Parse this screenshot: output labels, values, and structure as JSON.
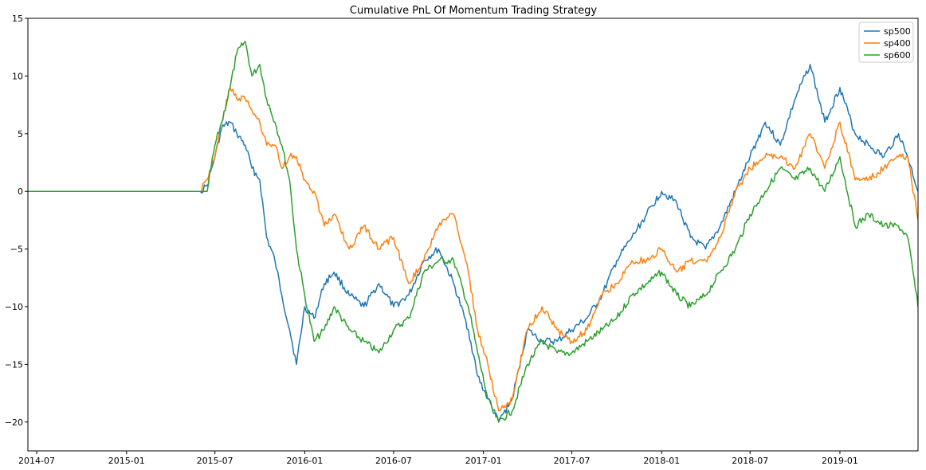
{
  "chart_data": {
    "type": "line",
    "title": "Cumulative PnL Of Momentum Trading Strategy",
    "xlabel": "",
    "ylabel": "",
    "xlim": [
      "2014-06-13",
      "2019-06-10"
    ],
    "ylim": [
      -22.5,
      15
    ],
    "x_ticks": [
      "2014-07",
      "2015-01",
      "2015-07",
      "2016-01",
      "2016-07",
      "2017-01",
      "2017-07",
      "2018-01",
      "2018-07",
      "2019-01"
    ],
    "y_ticks": [
      -20,
      -15,
      -10,
      -5,
      0,
      5,
      10,
      15
    ],
    "grid": false,
    "legend_position": "top-right",
    "series": [
      {
        "name": "sp500",
        "color": "#1f77b4",
        "x": [
          "2014-06-13",
          "2015-06-01",
          "2015-06-15",
          "2015-07-01",
          "2015-07-15",
          "2015-08-01",
          "2015-08-15",
          "2015-09-01",
          "2015-09-15",
          "2015-10-01",
          "2015-10-15",
          "2015-11-01",
          "2015-11-15",
          "2015-12-01",
          "2015-12-15",
          "2016-01-01",
          "2016-01-20",
          "2016-02-10",
          "2016-03-01",
          "2016-04-01",
          "2016-05-01",
          "2016-06-01",
          "2016-07-01",
          "2016-08-01",
          "2016-09-01",
          "2016-10-01",
          "2016-11-01",
          "2016-12-01",
          "2016-12-20",
          "2017-01-10",
          "2017-02-01",
          "2017-03-01",
          "2017-04-01",
          "2017-05-01",
          "2017-06-01",
          "2017-07-01",
          "2017-08-01",
          "2017-09-01",
          "2017-10-01",
          "2017-11-01",
          "2017-12-01",
          "2018-01-01",
          "2018-02-01",
          "2018-03-01",
          "2018-04-01",
          "2018-05-01",
          "2018-06-01",
          "2018-07-01",
          "2018-08-01",
          "2018-09-01",
          "2018-10-01",
          "2018-11-01",
          "2018-12-01",
          "2019-01-01",
          "2019-02-01",
          "2019-03-01",
          "2019-04-01",
          "2019-05-01",
          "2019-05-20",
          "2019-06-10"
        ],
        "values": [
          0,
          0,
          0.5,
          3,
          5.5,
          6,
          5,
          4,
          2,
          1,
          -4,
          -6,
          -9,
          -12,
          -15,
          -10,
          -11,
          -8,
          -7,
          -9,
          -10,
          -8,
          -10,
          -9,
          -6,
          -5,
          -8,
          -12,
          -16,
          -18,
          -20,
          -18,
          -12,
          -13,
          -13,
          -12,
          -11,
          -9,
          -6,
          -4,
          -2,
          0,
          -1,
          -4,
          -5,
          -3,
          0,
          3,
          6,
          4,
          8,
          11,
          6,
          9,
          5,
          4,
          3,
          5,
          3,
          0
        ]
      },
      {
        "name": "sp400",
        "color": "#ff7f0e",
        "x": [
          "2014-06-13",
          "2015-06-01",
          "2015-06-15",
          "2015-07-01",
          "2015-07-15",
          "2015-08-01",
          "2015-08-15",
          "2015-09-01",
          "2015-09-15",
          "2015-10-01",
          "2015-10-15",
          "2015-11-01",
          "2015-11-15",
          "2015-12-01",
          "2015-12-15",
          "2016-01-01",
          "2016-01-20",
          "2016-02-10",
          "2016-03-01",
          "2016-04-01",
          "2016-05-01",
          "2016-06-01",
          "2016-07-01",
          "2016-08-01",
          "2016-09-01",
          "2016-10-01",
          "2016-11-01",
          "2016-12-01",
          "2016-12-20",
          "2017-01-10",
          "2017-02-01",
          "2017-03-01",
          "2017-04-01",
          "2017-05-01",
          "2017-06-01",
          "2017-07-01",
          "2017-08-01",
          "2017-09-01",
          "2017-10-01",
          "2017-11-01",
          "2017-12-01",
          "2018-01-01",
          "2018-02-01",
          "2018-03-01",
          "2018-04-01",
          "2018-05-01",
          "2018-06-01",
          "2018-07-01",
          "2018-08-01",
          "2018-09-01",
          "2018-10-01",
          "2018-11-01",
          "2018-12-01",
          "2019-01-01",
          "2019-02-01",
          "2019-03-01",
          "2019-04-01",
          "2019-05-01",
          "2019-05-20",
          "2019-06-10"
        ],
        "values": [
          0,
          0,
          1,
          3,
          6,
          9,
          8,
          8,
          7,
          6,
          4,
          4,
          2,
          3,
          3,
          1,
          0,
          -3,
          -2,
          -5,
          -3,
          -5,
          -4,
          -8,
          -6,
          -3,
          -2,
          -7,
          -12,
          -15,
          -19,
          -18,
          -12,
          -10,
          -12,
          -13,
          -12,
          -9,
          -8,
          -6,
          -6,
          -5,
          -7,
          -6,
          -6,
          -4,
          0,
          2,
          3,
          3,
          2,
          5,
          2,
          6,
          1,
          1,
          2,
          3,
          3,
          -2.5
        ]
      },
      {
        "name": "sp600",
        "color": "#2ca02c",
        "x": [
          "2014-06-13",
          "2015-06-01",
          "2015-06-15",
          "2015-07-01",
          "2015-07-15",
          "2015-08-01",
          "2015-08-15",
          "2015-09-01",
          "2015-09-15",
          "2015-10-01",
          "2015-10-15",
          "2015-11-01",
          "2015-11-15",
          "2015-12-01",
          "2015-12-15",
          "2016-01-01",
          "2016-01-20",
          "2016-02-10",
          "2016-03-01",
          "2016-04-01",
          "2016-05-01",
          "2016-06-01",
          "2016-07-01",
          "2016-08-01",
          "2016-09-01",
          "2016-10-01",
          "2016-11-01",
          "2016-12-01",
          "2016-12-20",
          "2017-01-10",
          "2017-02-01",
          "2017-03-01",
          "2017-04-01",
          "2017-05-01",
          "2017-06-01",
          "2017-07-01",
          "2017-08-01",
          "2017-09-01",
          "2017-10-01",
          "2017-11-01",
          "2017-12-01",
          "2018-01-01",
          "2018-02-01",
          "2018-03-01",
          "2018-04-01",
          "2018-05-01",
          "2018-06-01",
          "2018-07-01",
          "2018-08-01",
          "2018-09-01",
          "2018-10-01",
          "2018-11-01",
          "2018-12-01",
          "2019-01-01",
          "2019-02-01",
          "2019-03-01",
          "2019-04-01",
          "2019-05-01",
          "2019-05-20",
          "2019-06-10"
        ],
        "values": [
          0,
          0,
          0,
          4,
          6,
          9,
          12,
          13,
          10,
          11,
          8,
          6,
          4,
          1,
          -5,
          -9,
          -13,
          -12,
          -10,
          -12,
          -13,
          -14,
          -12,
          -11,
          -7,
          -6,
          -6,
          -10,
          -14,
          -18,
          -20,
          -19,
          -15,
          -13,
          -14,
          -14,
          -13,
          -12,
          -11,
          -9,
          -8,
          -7,
          -9,
          -10,
          -9,
          -7,
          -5,
          -2,
          0,
          2,
          1,
          2,
          0,
          3,
          -3,
          -2,
          -3,
          -3,
          -4,
          -10
        ]
      }
    ]
  }
}
